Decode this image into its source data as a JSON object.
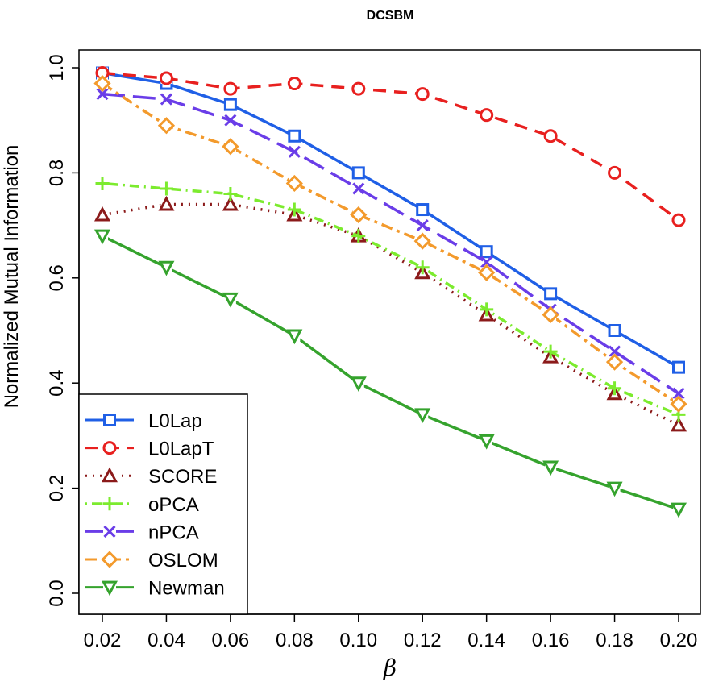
{
  "chart_data": {
    "type": "line",
    "title": "DCSBM",
    "xlabel": "β",
    "ylabel": "Normalized Mutual Information",
    "x": [
      0.02,
      0.04,
      0.06,
      0.08,
      0.1,
      0.12,
      0.14,
      0.16,
      0.18,
      0.2
    ],
    "x_tick_labels": [
      "0.02",
      "0.04",
      "0.06",
      "0.08",
      "0.10",
      "0.12",
      "0.14",
      "0.16",
      "0.18",
      "0.20"
    ],
    "y_ticks": [
      0.0,
      0.2,
      0.4,
      0.6,
      0.8,
      1.0
    ],
    "y_tick_labels": [
      "0.0",
      "0.2",
      "0.4",
      "0.6",
      "0.8",
      "1.0"
    ],
    "xlim": [
      0.02,
      0.2
    ],
    "ylim": [
      0.0,
      1.0
    ],
    "legend_position": "bottom-left",
    "series": [
      {
        "name": "L0Lap",
        "color": "#1F5FE6",
        "dash": "solid",
        "marker": "square",
        "values": [
          0.99,
          0.97,
          0.93,
          0.87,
          0.8,
          0.73,
          0.65,
          0.57,
          0.5,
          0.43
        ]
      },
      {
        "name": "L0LapT",
        "color": "#E8201F",
        "dash": "dashed",
        "marker": "circle",
        "values": [
          0.99,
          0.98,
          0.96,
          0.97,
          0.96,
          0.95,
          0.91,
          0.87,
          0.8,
          0.71
        ]
      },
      {
        "name": "SCORE",
        "color": "#8B1A1A",
        "dash": "dotted",
        "marker": "triangle-up",
        "values": [
          0.72,
          0.74,
          0.74,
          0.72,
          0.68,
          0.61,
          0.53,
          0.45,
          0.38,
          0.32
        ]
      },
      {
        "name": "oPCA",
        "color": "#7CEB2E",
        "dash": "dotdash",
        "marker": "plus",
        "values": [
          0.78,
          0.77,
          0.76,
          0.73,
          0.68,
          0.62,
          0.54,
          0.46,
          0.39,
          0.34
        ]
      },
      {
        "name": "nPCA",
        "color": "#6A3DE8",
        "dash": "longdash",
        "marker": "cross",
        "values": [
          0.95,
          0.94,
          0.9,
          0.84,
          0.77,
          0.7,
          0.63,
          0.54,
          0.46,
          0.38
        ]
      },
      {
        "name": "OSLOM",
        "color": "#F39A2C",
        "dash": "twodash",
        "marker": "diamond",
        "values": [
          0.97,
          0.89,
          0.85,
          0.78,
          0.72,
          0.67,
          0.61,
          0.53,
          0.44,
          0.36
        ]
      },
      {
        "name": "Newman",
        "color": "#35A32D",
        "dash": "solid",
        "marker": "triangle-down",
        "values": [
          0.68,
          0.62,
          0.56,
          0.49,
          0.4,
          0.34,
          0.29,
          0.24,
          0.2,
          0.16
        ]
      }
    ]
  }
}
